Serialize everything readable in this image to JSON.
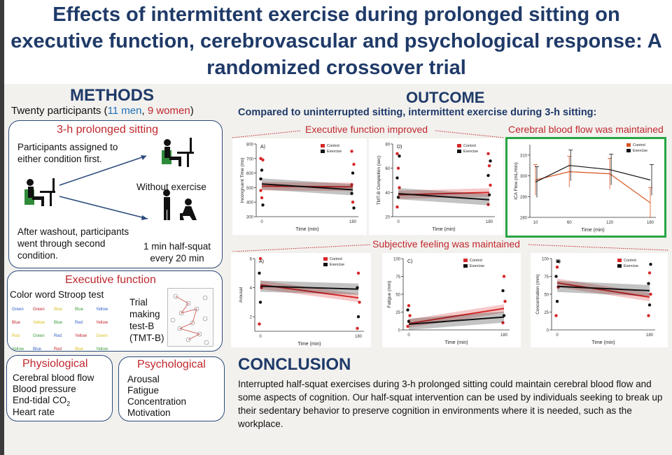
{
  "title": "Effects of intermittent exercise during prolonged sitting on executive function, cerebrovascular and psychological response: A randomized crossover trial",
  "methods": {
    "heading": "METHODS",
    "participants_prefix": "Twenty participants (",
    "men": "11 men",
    "sep": ", ",
    "women": "9 women",
    "participants_suffix": ")",
    "sitting_title": "3-h prolonged sitting",
    "assigned": "Participants assigned to either condition first.",
    "without_exercise": "Without exercise",
    "washout": "After washout, participants went through second condition.",
    "half_squat": "1 min half-squat every 20 min",
    "exec_title": "Executive function",
    "stroop_label": "Color word Stroop test",
    "stroop_words": [
      "Green",
      "Green",
      "Blue",
      "Blue",
      "Yellow",
      "Blue",
      "Yellow",
      "Blue",
      "Red",
      "Yellow",
      "Red",
      "Green",
      "Red",
      "Yellow",
      "Green",
      "Yellow",
      "Blue",
      "Red",
      "Blue",
      "Yellow",
      "Red",
      "Blue",
      "Yellow",
      "Red"
    ],
    "tmt_label": "Trial making test-B (TMT-B)",
    "physio_title": "Physiological",
    "physio_items": [
      "Cerebral blood flow",
      "Blood pressure",
      "End-tidal CO",
      "Heart rate"
    ],
    "co2_sub": "2",
    "psych_title": "Psychological",
    "psych_items": [
      "Arousal",
      "Fatigue",
      "Concentration",
      "Motivation"
    ]
  },
  "outcome": {
    "heading": "OUTCOME",
    "compared": "Compared to uninterrupted sitting, intermittent exercise during 3-h sitting:",
    "exec_improved": "Executive function improved",
    "cbf_maintained": "Cerebral blood flow was maintained",
    "subjective": "Subjective feeling was maintained",
    "legend_control": "Control",
    "legend_exercise": "Exercise",
    "time_label": "Time (min)"
  },
  "conclusion": {
    "heading": "CONCLUSION",
    "text": "Interrupted half-squat exercises during 3-h prolonged sitting could maintain cerebral blood flow and some aspects of cognition. Our half-squat intervention can be used by individuals seeking to break up their sedentary behavior to preserve cognition in environments where it is needed, such as the workplace."
  },
  "chart_data": [
    {
      "type": "line",
      "panel": "A)",
      "ylabel": "Incongruent Time (ms)",
      "xlabel": "Time (min)",
      "x": [
        0,
        180
      ],
      "ylim": [
        300,
        800
      ],
      "yticks": [
        300,
        400,
        500,
        600,
        700,
        800
      ],
      "series": [
        {
          "name": "Control",
          "values": [
            510,
            505
          ],
          "color": "#d62728"
        },
        {
          "name": "Exercise",
          "values": [
            525,
            485
          ],
          "color": "#111111"
        }
      ]
    },
    {
      "type": "line",
      "panel": "D)",
      "ylabel": "TMT-B Completion (sec)",
      "xlabel": "Time (min)",
      "x": [
        0,
        180
      ],
      "ylim": [
        20,
        80
      ],
      "yticks": [
        20,
        40,
        60,
        80
      ],
      "series": [
        {
          "name": "Control",
          "values": [
            38,
            40
          ],
          "color": "#d62728"
        },
        {
          "name": "Exercise",
          "values": [
            39,
            34
          ],
          "color": "#111111"
        }
      ]
    },
    {
      "type": "line",
      "panel": "CBF",
      "ylabel": "ICA Flow (mL/min)",
      "xlabel": "Time (min)",
      "x": [
        10,
        60,
        120,
        180
      ],
      "ylim": [
        280,
        315
      ],
      "yticks": [
        280,
        290,
        300,
        310
      ],
      "series": [
        {
          "name": "Control",
          "values": [
            298,
            302,
            301,
            287
          ],
          "color": "#d9531e"
        },
        {
          "name": "Exercise",
          "values": [
            297,
            305,
            303,
            298
          ],
          "color": "#111111"
        }
      ]
    },
    {
      "type": "line",
      "panel": "A)",
      "ylabel": "Arousal",
      "xlabel": "Time (min)",
      "x": [
        0,
        180
      ],
      "ylim": [
        1,
        6
      ],
      "yticks": [
        2,
        4,
        6
      ],
      "series": [
        {
          "name": "Control",
          "values": [
            4.2,
            3.3
          ],
          "color": "#d62728"
        },
        {
          "name": "Exercise",
          "values": [
            4.1,
            3.9
          ],
          "color": "#111111"
        }
      ]
    },
    {
      "type": "line",
      "panel": "C)",
      "ylabel": "Fatigue (mm)",
      "xlabel": "Time (min)",
      "x": [
        0,
        180
      ],
      "ylim": [
        0,
        100
      ],
      "yticks": [
        0,
        25,
        50,
        75,
        100
      ],
      "series": [
        {
          "name": "Control",
          "values": [
            9,
            30
          ],
          "color": "#d62728"
        },
        {
          "name": "Exercise",
          "values": [
            8,
            18
          ],
          "color": "#111111"
        }
      ]
    },
    {
      "type": "line",
      "panel": "B)",
      "ylabel": "Concentration (mm)",
      "xlabel": "Time (min)",
      "x": [
        0,
        180
      ],
      "ylim": [
        0,
        100
      ],
      "yticks": [
        0,
        25,
        50,
        75,
        100
      ],
      "series": [
        {
          "name": "Control",
          "values": [
            66,
            46
          ],
          "color": "#d62728"
        },
        {
          "name": "Exercise",
          "values": [
            61,
            55
          ],
          "color": "#111111"
        }
      ]
    }
  ]
}
